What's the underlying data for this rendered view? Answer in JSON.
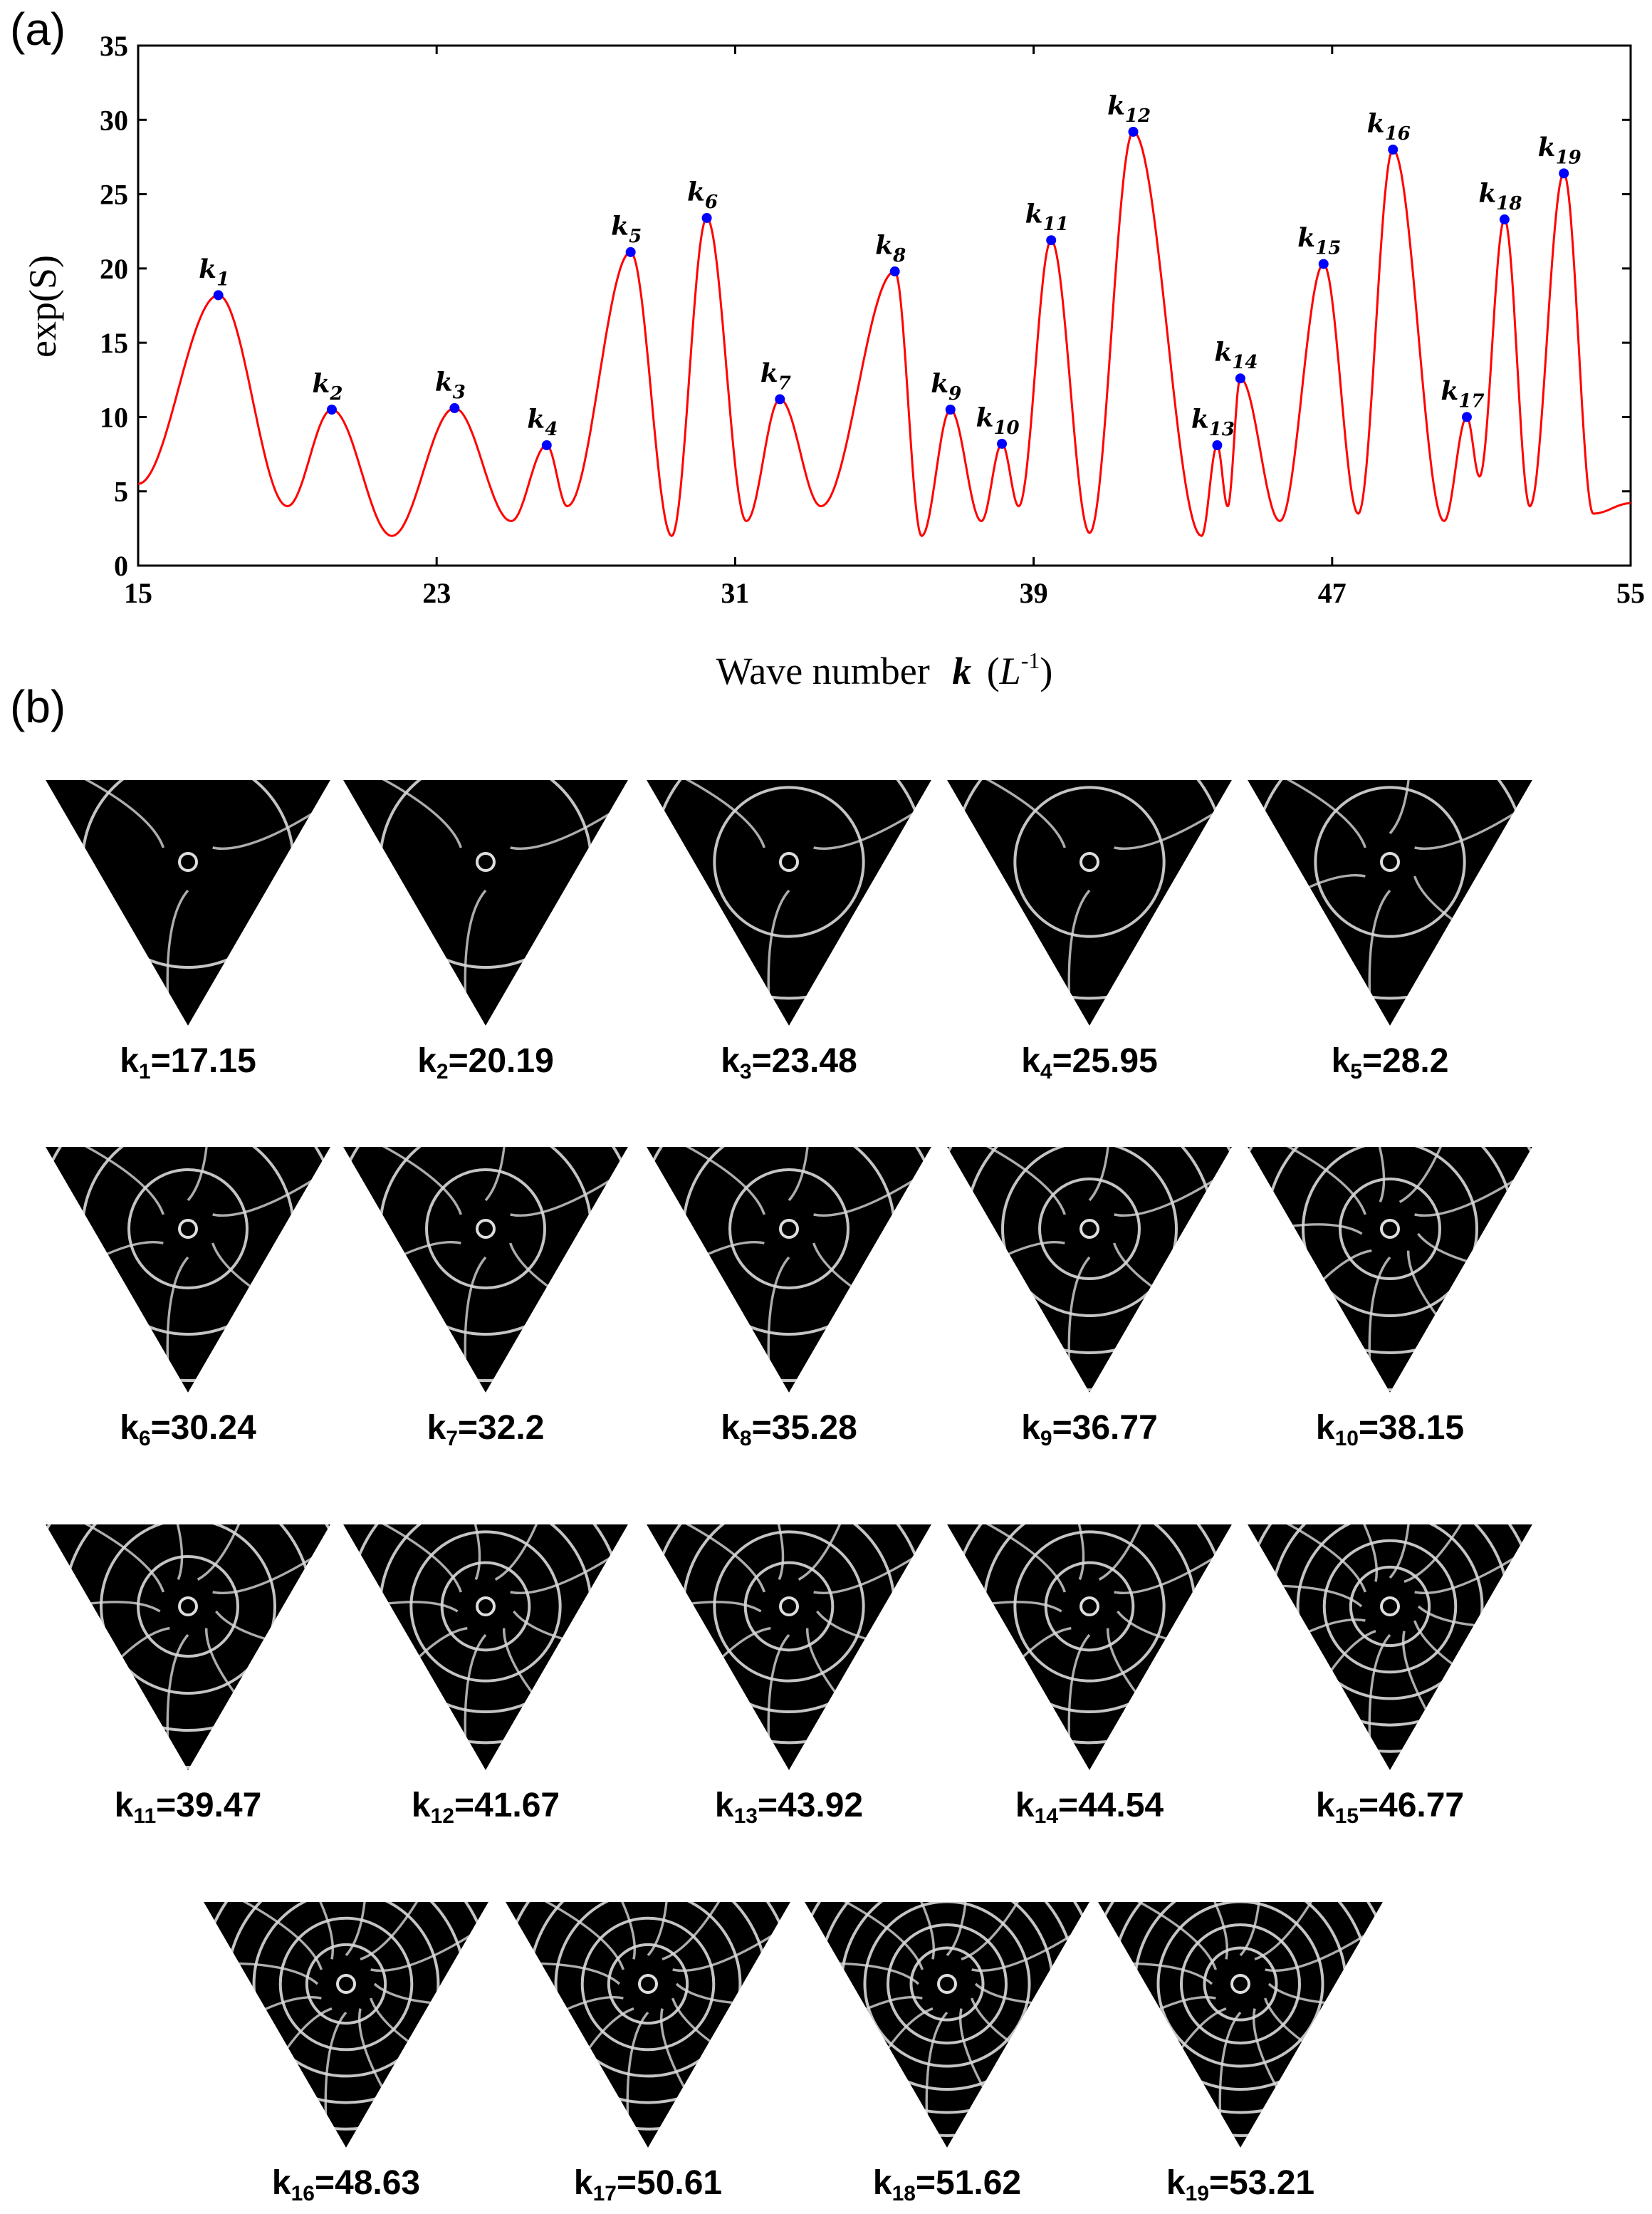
{
  "panel_a_label": "(a)",
  "panel_b_label": "(b)",
  "chart_data": {
    "type": "line",
    "title": "",
    "xlabel": "Wave number",
    "xlabel_var": "k",
    "xlabel_unit_open": "(",
    "xlabel_unit": "L",
    "xlabel_unit_exp": "-1",
    "xlabel_unit_close": ")",
    "ylabel": "exp(S)",
    "xlim": [
      15,
      55
    ],
    "ylim": [
      0,
      35
    ],
    "xticks": [
      15,
      23,
      31,
      39,
      47,
      55
    ],
    "yticks": [
      0,
      5,
      10,
      15,
      20,
      25,
      30,
      35
    ],
    "line_color": "#ff0000",
    "marker_color": "#0000ff",
    "peaks": [
      {
        "name": "k",
        "sub": "1",
        "x": 17.15,
        "y": 18.2
      },
      {
        "name": "k",
        "sub": "2",
        "x": 20.19,
        "y": 10.5
      },
      {
        "name": "k",
        "sub": "3",
        "x": 23.48,
        "y": 10.6
      },
      {
        "name": "k",
        "sub": "4",
        "x": 25.95,
        "y": 8.1
      },
      {
        "name": "k",
        "sub": "5",
        "x": 28.2,
        "y": 21.1
      },
      {
        "name": "k",
        "sub": "6",
        "x": 30.24,
        "y": 23.4
      },
      {
        "name": "k",
        "sub": "7",
        "x": 32.2,
        "y": 11.2
      },
      {
        "name": "k",
        "sub": "8",
        "x": 35.28,
        "y": 19.8
      },
      {
        "name": "k",
        "sub": "9",
        "x": 36.77,
        "y": 10.5
      },
      {
        "name": "k",
        "sub": "10",
        "x": 38.15,
        "y": 8.2
      },
      {
        "name": "k",
        "sub": "11",
        "x": 39.47,
        "y": 21.9
      },
      {
        "name": "k",
        "sub": "12",
        "x": 41.67,
        "y": 29.2
      },
      {
        "name": "k",
        "sub": "13",
        "x": 43.92,
        "y": 8.1
      },
      {
        "name": "k",
        "sub": "14",
        "x": 44.54,
        "y": 12.6
      },
      {
        "name": "k",
        "sub": "15",
        "x": 46.77,
        "y": 20.3
      },
      {
        "name": "k",
        "sub": "16",
        "x": 48.63,
        "y": 28.0
      },
      {
        "name": "k",
        "sub": "17",
        "x": 50.61,
        "y": 10.0
      },
      {
        "name": "k",
        "sub": "18",
        "x": 51.62,
        "y": 23.3
      },
      {
        "name": "k",
        "sub": "19",
        "x": 53.21,
        "y": 26.4
      }
    ],
    "minima": [
      {
        "x": 15,
        "y": 5.5
      },
      {
        "x": 19.0,
        "y": 4.0
      },
      {
        "x": 21.8,
        "y": 2.0
      },
      {
        "x": 25.0,
        "y": 3.0
      },
      {
        "x": 26.5,
        "y": 4.0
      },
      {
        "x": 29.3,
        "y": 2.0
      },
      {
        "x": 31.3,
        "y": 3.0
      },
      {
        "x": 33.3,
        "y": 4.0
      },
      {
        "x": 36.0,
        "y": 2.0
      },
      {
        "x": 37.6,
        "y": 3.0
      },
      {
        "x": 38.6,
        "y": 4.0
      },
      {
        "x": 40.5,
        "y": 2.2
      },
      {
        "x": 43.5,
        "y": 2.0
      },
      {
        "x": 44.2,
        "y": 4.0
      },
      {
        "x": 45.6,
        "y": 3.0
      },
      {
        "x": 47.7,
        "y": 3.5
      },
      {
        "x": 50.0,
        "y": 3.0
      },
      {
        "x": 50.95,
        "y": 6.0
      },
      {
        "x": 52.3,
        "y": 4.0
      },
      {
        "x": 54.0,
        "y": 3.5
      },
      {
        "x": 55,
        "y": 4.2
      }
    ]
  },
  "modes": [
    {
      "k": "k",
      "sub": "1",
      "val": "=17.15"
    },
    {
      "k": "k",
      "sub": "2",
      "val": "=20.19"
    },
    {
      "k": "k",
      "sub": "3",
      "val": "=23.48"
    },
    {
      "k": "k",
      "sub": "4",
      "val": "=25.95"
    },
    {
      "k": "k",
      "sub": "5",
      "val": "=28.2"
    },
    {
      "k": "k",
      "sub": "6",
      "val": "=30.24"
    },
    {
      "k": "k",
      "sub": "7",
      "val": "=32.2"
    },
    {
      "k": "k",
      "sub": "8",
      "val": "=35.28"
    },
    {
      "k": "k",
      "sub": "9",
      "val": "=36.77"
    },
    {
      "k": "k",
      "sub": "10",
      "val": "=38.15"
    },
    {
      "k": "k",
      "sub": "11",
      "val": "=39.47"
    },
    {
      "k": "k",
      "sub": "12",
      "val": "=41.67"
    },
    {
      "k": "k",
      "sub": "13",
      "val": "=43.92"
    },
    {
      "k": "k",
      "sub": "14",
      "val": "=44.54"
    },
    {
      "k": "k",
      "sub": "15",
      "val": "=46.77"
    },
    {
      "k": "k",
      "sub": "16",
      "val": "=48.63"
    },
    {
      "k": "k",
      "sub": "17",
      "val": "=50.61"
    },
    {
      "k": "k",
      "sub": "18",
      "val": "=51.62"
    },
    {
      "k": "k",
      "sub": "19",
      "val": "=53.21"
    }
  ]
}
